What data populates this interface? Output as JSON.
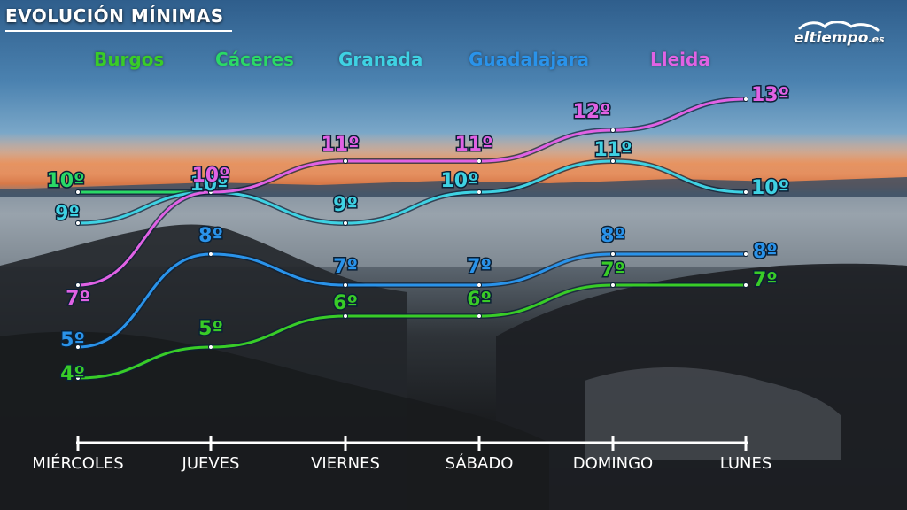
{
  "title": "EVOLUCIÓN MÍNIMAS",
  "logo": {
    "name": "eltiempo",
    "domain": ".es"
  },
  "chart_data": {
    "type": "line",
    "title": "EVOLUCIÓN MÍNIMAS",
    "xlabel": "",
    "ylabel": "",
    "categories": [
      "MIÉRCOLES",
      "JUEVES",
      "VIERNES",
      "SÁBADO",
      "DOMINGO",
      "LUNES"
    ],
    "unit_suffix": "º",
    "legend_position": "top",
    "grid": false,
    "ylim": [
      4,
      13
    ],
    "series": [
      {
        "name": "Burgos",
        "color": "#39cc27",
        "values": [
          4,
          5,
          6,
          6,
          7,
          7
        ]
      },
      {
        "name": "Cáceres",
        "color": "#2ad966",
        "values": [
          10,
          10,
          null,
          null,
          null,
          null
        ]
      },
      {
        "name": "Granada",
        "color": "#3fd2e3",
        "values": [
          9,
          10,
          9,
          10,
          11,
          10
        ]
      },
      {
        "name": "Guadalajara",
        "color": "#2a93ea",
        "values": [
          5,
          8,
          7,
          7,
          8,
          8
        ]
      },
      {
        "name": "Lleida",
        "color": "#e162e4",
        "values": [
          7,
          10,
          11,
          11,
          12,
          13
        ]
      }
    ]
  }
}
